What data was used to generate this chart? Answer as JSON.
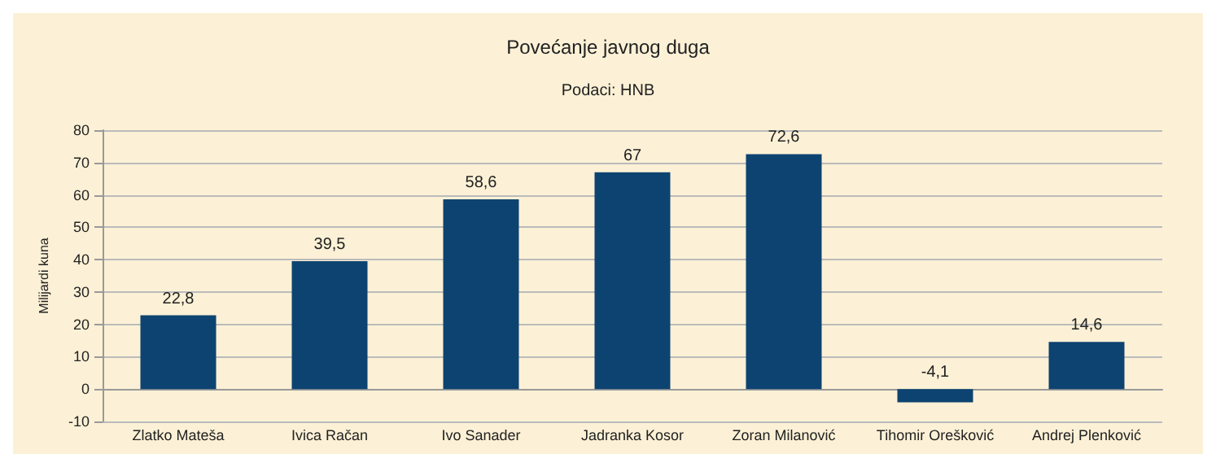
{
  "chart_data": {
    "type": "bar",
    "title": "Povećanje javnog duga",
    "subtitle": "Podaci: HNB",
    "ylabel": "Milijardi kuna",
    "categories": [
      "Zlatko Mateša",
      "Ivica Račan",
      "Ivo Sanader",
      "Jadranka Kosor",
      "Zoran Milanović",
      "Tihomir Orešković",
      "Andrej Plenković"
    ],
    "values": [
      22.8,
      39.5,
      58.6,
      67,
      72.6,
      -4.1,
      14.6
    ],
    "value_labels": [
      "22,8",
      "39,5",
      "58,6",
      "67",
      "72,6",
      "-4,1",
      "14,6"
    ],
    "color": "#0d4371",
    "ylim": [
      -10,
      80
    ],
    "yticks": [
      -10,
      0,
      10,
      20,
      30,
      40,
      50,
      60,
      70,
      80
    ],
    "grid": "y"
  }
}
